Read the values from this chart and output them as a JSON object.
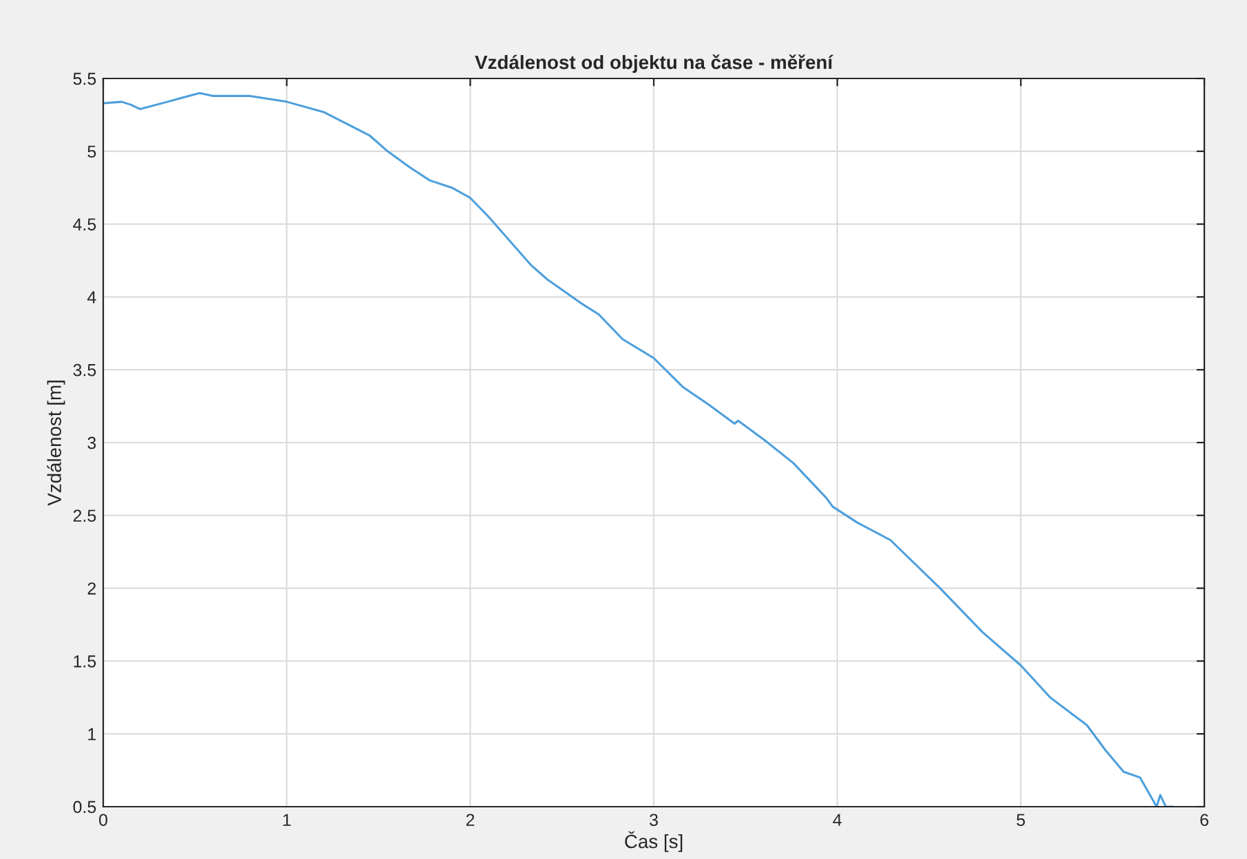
{
  "chart_data": {
    "type": "line",
    "title": "Vzdálenost od objektu na čase - měření",
    "xlabel": "Čas [s]",
    "ylabel": "Vzdálenost [m]",
    "xlim": [
      0,
      6
    ],
    "xticks": [
      0,
      1,
      2,
      3,
      4,
      5,
      6
    ],
    "ylim": [
      0.5,
      5.5
    ],
    "yticks": [
      0.5,
      1,
      1.5,
      2,
      2.5,
      3,
      3.5,
      4,
      4.5,
      5,
      5.5
    ],
    "grid": true,
    "series": [
      {
        "color": "#4d9fdc",
        "x": [
          0,
          0.1,
          0.15,
          0.2,
          0.35,
          0.525,
          0.6,
          0.8,
          1.0,
          1.2,
          1.45,
          1.55,
          1.67,
          1.78,
          1.9,
          2.0,
          2.1,
          2.33,
          2.42,
          2.6,
          2.7,
          2.83,
          3.0,
          3.16,
          3.3,
          3.44,
          3.46,
          3.6,
          3.76,
          3.94,
          3.975,
          4.11,
          4.29,
          4.56,
          4.79,
          5.0,
          5.16,
          5.36,
          5.46,
          5.56,
          5.65,
          5.74,
          5.76,
          5.79,
          5.83
        ],
        "values": [
          5.33,
          5.34,
          5.32,
          5.29,
          5.34,
          5.4,
          5.38,
          5.38,
          5.34,
          5.27,
          5.11,
          5.0,
          4.89,
          4.8,
          4.75,
          4.68,
          4.55,
          4.22,
          4.12,
          3.96,
          3.88,
          3.71,
          3.58,
          3.38,
          3.26,
          3.13,
          3.15,
          3.02,
          2.86,
          2.62,
          2.56,
          2.45,
          2.33,
          2.0,
          1.7,
          1.47,
          1.25,
          1.06,
          0.89,
          0.74,
          0.7,
          0.5,
          0.58,
          0.5,
          0.5
        ]
      }
    ]
  }
}
